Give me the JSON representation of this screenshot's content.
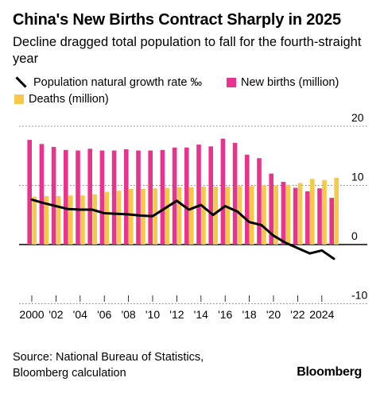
{
  "header": {
    "title": "China's New Births Contract Sharply in 2025",
    "subtitle": "Decline dragged total population to fall for the fourth-straight year"
  },
  "legend": {
    "line_label": "Population natural growth rate ‰",
    "births_label": "New births (million)",
    "deaths_label": "Deaths (million)"
  },
  "footer": {
    "source_line1": "Source: National Bureau of Statistics,",
    "source_line2": "Bloomberg calculation",
    "brand": "Bloomberg"
  },
  "colors": {
    "births": "#e8348f",
    "deaths": "#f7c948",
    "line": "#000000",
    "grid": "#000000"
  },
  "chart_data": {
    "type": "bar",
    "x": [
      2000,
      2001,
      2002,
      2003,
      2004,
      2005,
      2006,
      2007,
      2008,
      2009,
      2010,
      2011,
      2012,
      2013,
      2014,
      2015,
      2016,
      2017,
      2018,
      2019,
      2020,
      2021,
      2022,
      2023,
      2024,
      2025
    ],
    "xtick_labels": [
      "2000",
      "'02",
      "'04",
      "'06",
      "'08",
      "'10",
      "'12",
      "'14",
      "'16",
      "'18",
      "'20",
      "'22",
      "2024"
    ],
    "yticks": [
      20,
      10,
      0,
      -10
    ],
    "ylim": [
      -10,
      20
    ],
    "series": [
      {
        "name": "New births (million)",
        "type": "bar",
        "values": [
          17.7,
          17.0,
          16.5,
          16.0,
          15.9,
          16.2,
          15.9,
          15.9,
          16.1,
          15.9,
          15.9,
          16.0,
          16.4,
          16.4,
          16.9,
          16.6,
          17.9,
          17.2,
          15.2,
          14.6,
          12.0,
          10.6,
          9.6,
          9.0,
          9.5,
          7.9
        ]
      },
      {
        "name": "Deaths (million)",
        "type": "bar",
        "values": [
          8.1,
          8.2,
          8.2,
          8.3,
          8.3,
          8.5,
          8.9,
          9.1,
          9.4,
          9.4,
          9.5,
          9.6,
          9.7,
          9.7,
          9.8,
          9.8,
          9.8,
          9.9,
          9.9,
          10.0,
          10.0,
          10.1,
          10.4,
          11.1,
          10.9,
          11.3
        ]
      },
      {
        "name": "Population natural growth rate ‰",
        "type": "line",
        "values": [
          7.6,
          7.0,
          6.5,
          6.0,
          5.9,
          5.9,
          5.3,
          5.2,
          5.1,
          4.9,
          4.8,
          6.1,
          7.4,
          5.9,
          6.7,
          5.0,
          6.5,
          5.6,
          3.8,
          3.3,
          1.5,
          0.3,
          -0.6,
          -1.5,
          -1.0,
          -2.4
        ]
      }
    ]
  }
}
